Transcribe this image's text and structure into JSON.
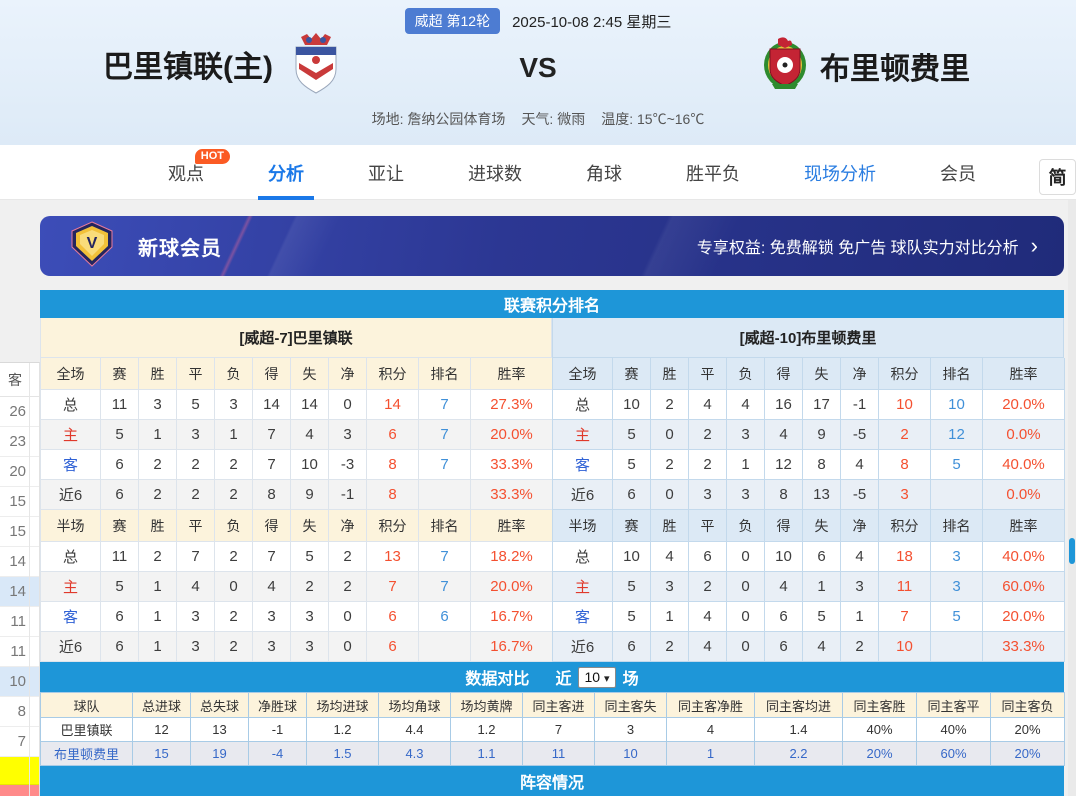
{
  "page": {
    "lang_button": "简"
  },
  "header": {
    "league_badge": "威超 第12轮",
    "datetime": "2025-10-08 2:45 星期三",
    "home_team": "巴里镇联(主)",
    "vs_label": "VS",
    "away_team": "布里顿费里",
    "venue": "场地: 詹纳公园体育场",
    "weather": "天气: 微雨",
    "temperature": "温度: 15℃~16℃"
  },
  "nav": {
    "hot_badge": "HOT",
    "tabs": [
      {
        "label": "观点",
        "hot": true
      },
      {
        "label": "分析",
        "active": true
      },
      {
        "label": "亚让"
      },
      {
        "label": "进球数"
      },
      {
        "label": "角球"
      },
      {
        "label": "胜平负"
      },
      {
        "label": "现场分析",
        "highlight": true
      },
      {
        "label": "会员"
      }
    ]
  },
  "banner": {
    "title": "新球会员",
    "benefits": "专享权益: 免费解锁 免广告 球队实力对比分析",
    "arrow": "›"
  },
  "standings": {
    "title": "联赛积分排名",
    "columns_full": [
      "全场",
      "赛",
      "胜",
      "平",
      "负",
      "得",
      "失",
      "净",
      "积分",
      "排名",
      "胜率"
    ],
    "columns_half": [
      "半场",
      "赛",
      "胜",
      "平",
      "负",
      "得",
      "失",
      "净",
      "积分",
      "排名",
      "胜率"
    ],
    "teams": [
      {
        "header": "[威超-7]巴里镇联",
        "theme": "cream",
        "full_rows": [
          {
            "label": "总",
            "cells": [
              "11",
              "3",
              "5",
              "3",
              "14",
              "14",
              "0"
            ],
            "points": "14",
            "rank": "7",
            "rate": "27.3%"
          },
          {
            "label": "主",
            "cells": [
              "5",
              "1",
              "3",
              "1",
              "7",
              "4",
              "3"
            ],
            "points": "6",
            "rank": "7",
            "rate": "20.0%"
          },
          {
            "label": "客",
            "cells": [
              "6",
              "2",
              "2",
              "2",
              "7",
              "10",
              "-3"
            ],
            "points": "8",
            "rank": "7",
            "rate": "33.3%"
          },
          {
            "label": "近6",
            "cells": [
              "6",
              "2",
              "2",
              "2",
              "8",
              "9",
              "-1"
            ],
            "points": "8",
            "rank": "",
            "rate": "33.3%"
          }
        ],
        "half_rows": [
          {
            "label": "总",
            "cells": [
              "11",
              "2",
              "7",
              "2",
              "7",
              "5",
              "2"
            ],
            "points": "13",
            "rank": "7",
            "rate": "18.2%"
          },
          {
            "label": "主",
            "cells": [
              "5",
              "1",
              "4",
              "0",
              "4",
              "2",
              "2"
            ],
            "points": "7",
            "rank": "7",
            "rate": "20.0%"
          },
          {
            "label": "客",
            "cells": [
              "6",
              "1",
              "3",
              "2",
              "3",
              "3",
              "0"
            ],
            "points": "6",
            "rank": "6",
            "rate": "16.7%"
          },
          {
            "label": "近6",
            "cells": [
              "6",
              "1",
              "3",
              "2",
              "3",
              "3",
              "0"
            ],
            "points": "6",
            "rank": "",
            "rate": "16.7%"
          }
        ]
      },
      {
        "header": "[威超-10]布里顿费里",
        "theme": "blue",
        "full_rows": [
          {
            "label": "总",
            "cells": [
              "10",
              "2",
              "4",
              "4",
              "16",
              "17",
              "-1"
            ],
            "points": "10",
            "rank": "10",
            "rate": "20.0%"
          },
          {
            "label": "主",
            "cells": [
              "5",
              "0",
              "2",
              "3",
              "4",
              "9",
              "-5"
            ],
            "points": "2",
            "rank": "12",
            "rate": "0.0%"
          },
          {
            "label": "客",
            "cells": [
              "5",
              "2",
              "2",
              "1",
              "12",
              "8",
              "4"
            ],
            "points": "8",
            "rank": "5",
            "rate": "40.0%"
          },
          {
            "label": "近6",
            "cells": [
              "6",
              "0",
              "3",
              "3",
              "8",
              "13",
              "-5"
            ],
            "points": "3",
            "rank": "",
            "rate": "0.0%"
          }
        ],
        "half_rows": [
          {
            "label": "总",
            "cells": [
              "10",
              "4",
              "6",
              "0",
              "10",
              "6",
              "4"
            ],
            "points": "18",
            "rank": "3",
            "rate": "40.0%"
          },
          {
            "label": "主",
            "cells": [
              "5",
              "3",
              "2",
              "0",
              "4",
              "1",
              "3"
            ],
            "points": "11",
            "rank": "3",
            "rate": "60.0%"
          },
          {
            "label": "客",
            "cells": [
              "5",
              "1",
              "4",
              "0",
              "6",
              "5",
              "1"
            ],
            "points": "7",
            "rank": "5",
            "rate": "20.0%"
          },
          {
            "label": "近6",
            "cells": [
              "6",
              "2",
              "4",
              "0",
              "6",
              "4",
              "2"
            ],
            "points": "10",
            "rank": "",
            "rate": "33.3%"
          }
        ]
      }
    ]
  },
  "comparison": {
    "title": "数据对比",
    "recent_label_prefix": "近",
    "recent_value": "10",
    "recent_label_suffix": "场",
    "columns": [
      "球队",
      "总进球",
      "总失球",
      "净胜球",
      "场均进球",
      "场均角球",
      "场均黄牌",
      "同主客进",
      "同主客失",
      "同主客净胜",
      "同主客均进",
      "同主客胜",
      "同主客平",
      "同主客负"
    ],
    "rows": [
      {
        "team": "巴里镇联",
        "values": [
          "12",
          "13",
          "-1",
          "1.2",
          "4.4",
          "1.2",
          "7",
          "3",
          "4",
          "1.4",
          "40%",
          "40%",
          "20%"
        ]
      },
      {
        "team": "布里顿费里",
        "values": [
          "15",
          "19",
          "-4",
          "1.5",
          "4.3",
          "1.1",
          "11",
          "10",
          "1",
          "2.2",
          "20%",
          "60%",
          "20%"
        ]
      }
    ]
  },
  "lineup": {
    "title": "阵容情况"
  },
  "left_table": {
    "header": "客",
    "points": [
      "26",
      "23",
      "20",
      "15",
      "15",
      "14",
      "14",
      "11",
      "11",
      "10",
      "8",
      "7"
    ],
    "highlighted": [
      6,
      9
    ]
  }
}
